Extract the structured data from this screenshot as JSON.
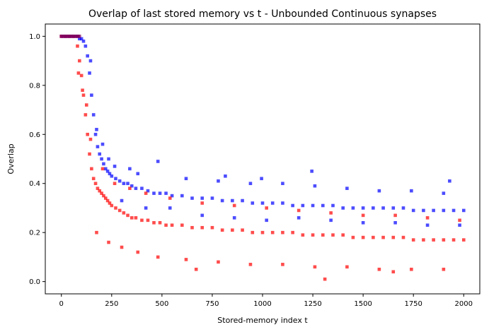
{
  "chart_data": {
    "type": "scatter",
    "title": "Overlap of last stored memory vs t  - Unbounded Continuous synapses",
    "xlabel": "Stored-memory index t",
    "ylabel": "Overlap",
    "xlim": [
      -80,
      2080
    ],
    "ylim": [
      -0.05,
      1.05
    ],
    "xticks": [
      0,
      250,
      500,
      750,
      1000,
      1250,
      1500,
      1750,
      2000
    ],
    "yticks": [
      0.0,
      0.2,
      0.4,
      0.6,
      0.8,
      1.0
    ],
    "xtick_labels": [
      "0",
      "250",
      "500",
      "750",
      "1000",
      "1250",
      "1500",
      "1750",
      "2000"
    ],
    "ytick_labels": [
      "0.0",
      "0.2",
      "0.4",
      "0.6",
      "0.8",
      "1.0"
    ],
    "grid": false,
    "legend": "none",
    "marker": "square",
    "alpha": 0.7,
    "series": [
      {
        "color": "#0000ff",
        "x": [
          0,
          20,
          40,
          60,
          80,
          90,
          100,
          110,
          120,
          130,
          140,
          150,
          160,
          170,
          180,
          190,
          200,
          210,
          220,
          230,
          240,
          250,
          270,
          290,
          310,
          330,
          350,
          370,
          400,
          430,
          460,
          490,
          520,
          550,
          600,
          650,
          700,
          750,
          800,
          850,
          900,
          950,
          1000,
          1050,
          1100,
          1150,
          1200,
          1250,
          1300,
          1350,
          1400,
          1450,
          1500,
          1550,
          1600,
          1650,
          1700,
          1750,
          1800,
          1850,
          1900,
          1950,
          2000,
          145,
          175,
          205,
          235,
          265,
          300,
          340,
          380,
          420,
          480,
          540,
          620,
          700,
          780,
          860,
          940,
          1020,
          1100,
          1180,
          1260,
          1340,
          1420,
          1500,
          1580,
          1660,
          1740,
          1820,
          1900,
          1980,
          1245,
          1930,
          995,
          815
        ],
        "y": [
          1.0,
          1.0,
          1.0,
          1.0,
          1.0,
          0.99,
          0.99,
          0.98,
          0.96,
          0.92,
          0.85,
          0.76,
          0.68,
          0.6,
          0.55,
          0.52,
          0.5,
          0.48,
          0.46,
          0.45,
          0.44,
          0.43,
          0.42,
          0.41,
          0.4,
          0.4,
          0.39,
          0.38,
          0.38,
          0.37,
          0.36,
          0.36,
          0.36,
          0.35,
          0.35,
          0.34,
          0.34,
          0.34,
          0.33,
          0.33,
          0.33,
          0.32,
          0.32,
          0.32,
          0.32,
          0.31,
          0.31,
          0.31,
          0.31,
          0.31,
          0.3,
          0.3,
          0.3,
          0.3,
          0.3,
          0.3,
          0.3,
          0.29,
          0.29,
          0.29,
          0.29,
          0.29,
          0.29,
          0.9,
          0.62,
          0.56,
          0.5,
          0.47,
          0.33,
          0.46,
          0.44,
          0.3,
          0.49,
          0.3,
          0.42,
          0.27,
          0.41,
          0.26,
          0.4,
          0.25,
          0.4,
          0.26,
          0.39,
          0.25,
          0.38,
          0.24,
          0.37,
          0.24,
          0.37,
          0.23,
          0.36,
          0.23,
          0.45,
          0.41,
          0.42,
          0.43
        ]
      },
      {
        "color": "#ff0000",
        "x": [
          0,
          20,
          40,
          60,
          80,
          90,
          100,
          110,
          120,
          130,
          140,
          150,
          160,
          170,
          180,
          190,
          200,
          210,
          220,
          230,
          240,
          250,
          270,
          290,
          310,
          330,
          350,
          370,
          400,
          430,
          460,
          490,
          520,
          550,
          600,
          650,
          700,
          750,
          800,
          850,
          900,
          950,
          1000,
          1050,
          1100,
          1150,
          1200,
          1250,
          1300,
          1350,
          1400,
          1450,
          1500,
          1550,
          1600,
          1650,
          1700,
          1750,
          1800,
          1850,
          1900,
          1950,
          2000,
          85,
          105,
          125,
          145,
          175,
          205,
          235,
          265,
          300,
          340,
          380,
          420,
          480,
          540,
          620,
          700,
          780,
          860,
          940,
          1020,
          1100,
          1180,
          1260,
          1340,
          1420,
          1500,
          1580,
          1660,
          1740,
          1820,
          1900,
          1980,
          1310,
          1650,
          670
        ],
        "y": [
          1.0,
          1.0,
          1.0,
          1.0,
          0.96,
          0.9,
          0.84,
          0.76,
          0.68,
          0.6,
          0.52,
          0.46,
          0.42,
          0.4,
          0.38,
          0.37,
          0.36,
          0.35,
          0.34,
          0.33,
          0.32,
          0.31,
          0.3,
          0.29,
          0.28,
          0.27,
          0.26,
          0.26,
          0.25,
          0.25,
          0.24,
          0.24,
          0.23,
          0.23,
          0.23,
          0.22,
          0.22,
          0.22,
          0.21,
          0.21,
          0.21,
          0.2,
          0.2,
          0.2,
          0.2,
          0.2,
          0.19,
          0.19,
          0.19,
          0.19,
          0.19,
          0.18,
          0.18,
          0.18,
          0.18,
          0.18,
          0.18,
          0.17,
          0.17,
          0.17,
          0.17,
          0.17,
          0.17,
          0.85,
          0.78,
          0.72,
          0.58,
          0.2,
          0.46,
          0.16,
          0.4,
          0.14,
          0.38,
          0.12,
          0.36,
          0.1,
          0.34,
          0.09,
          0.32,
          0.08,
          0.31,
          0.07,
          0.3,
          0.07,
          0.29,
          0.06,
          0.28,
          0.06,
          0.27,
          0.05,
          0.27,
          0.05,
          0.26,
          0.05,
          0.25,
          0.01,
          0.04,
          0.05
        ]
      },
      {
        "color": "#800060",
        "x": [
          0,
          5,
          10,
          15,
          20,
          25,
          30,
          35,
          40,
          45,
          50,
          55,
          60,
          65,
          70,
          75,
          80,
          85,
          90
        ],
        "y": [
          1.0,
          1.0,
          1.0,
          1.0,
          1.0,
          1.0,
          1.0,
          1.0,
          1.0,
          1.0,
          1.0,
          1.0,
          1.0,
          1.0,
          1.0,
          1.0,
          1.0,
          1.0,
          1.0
        ]
      }
    ]
  }
}
